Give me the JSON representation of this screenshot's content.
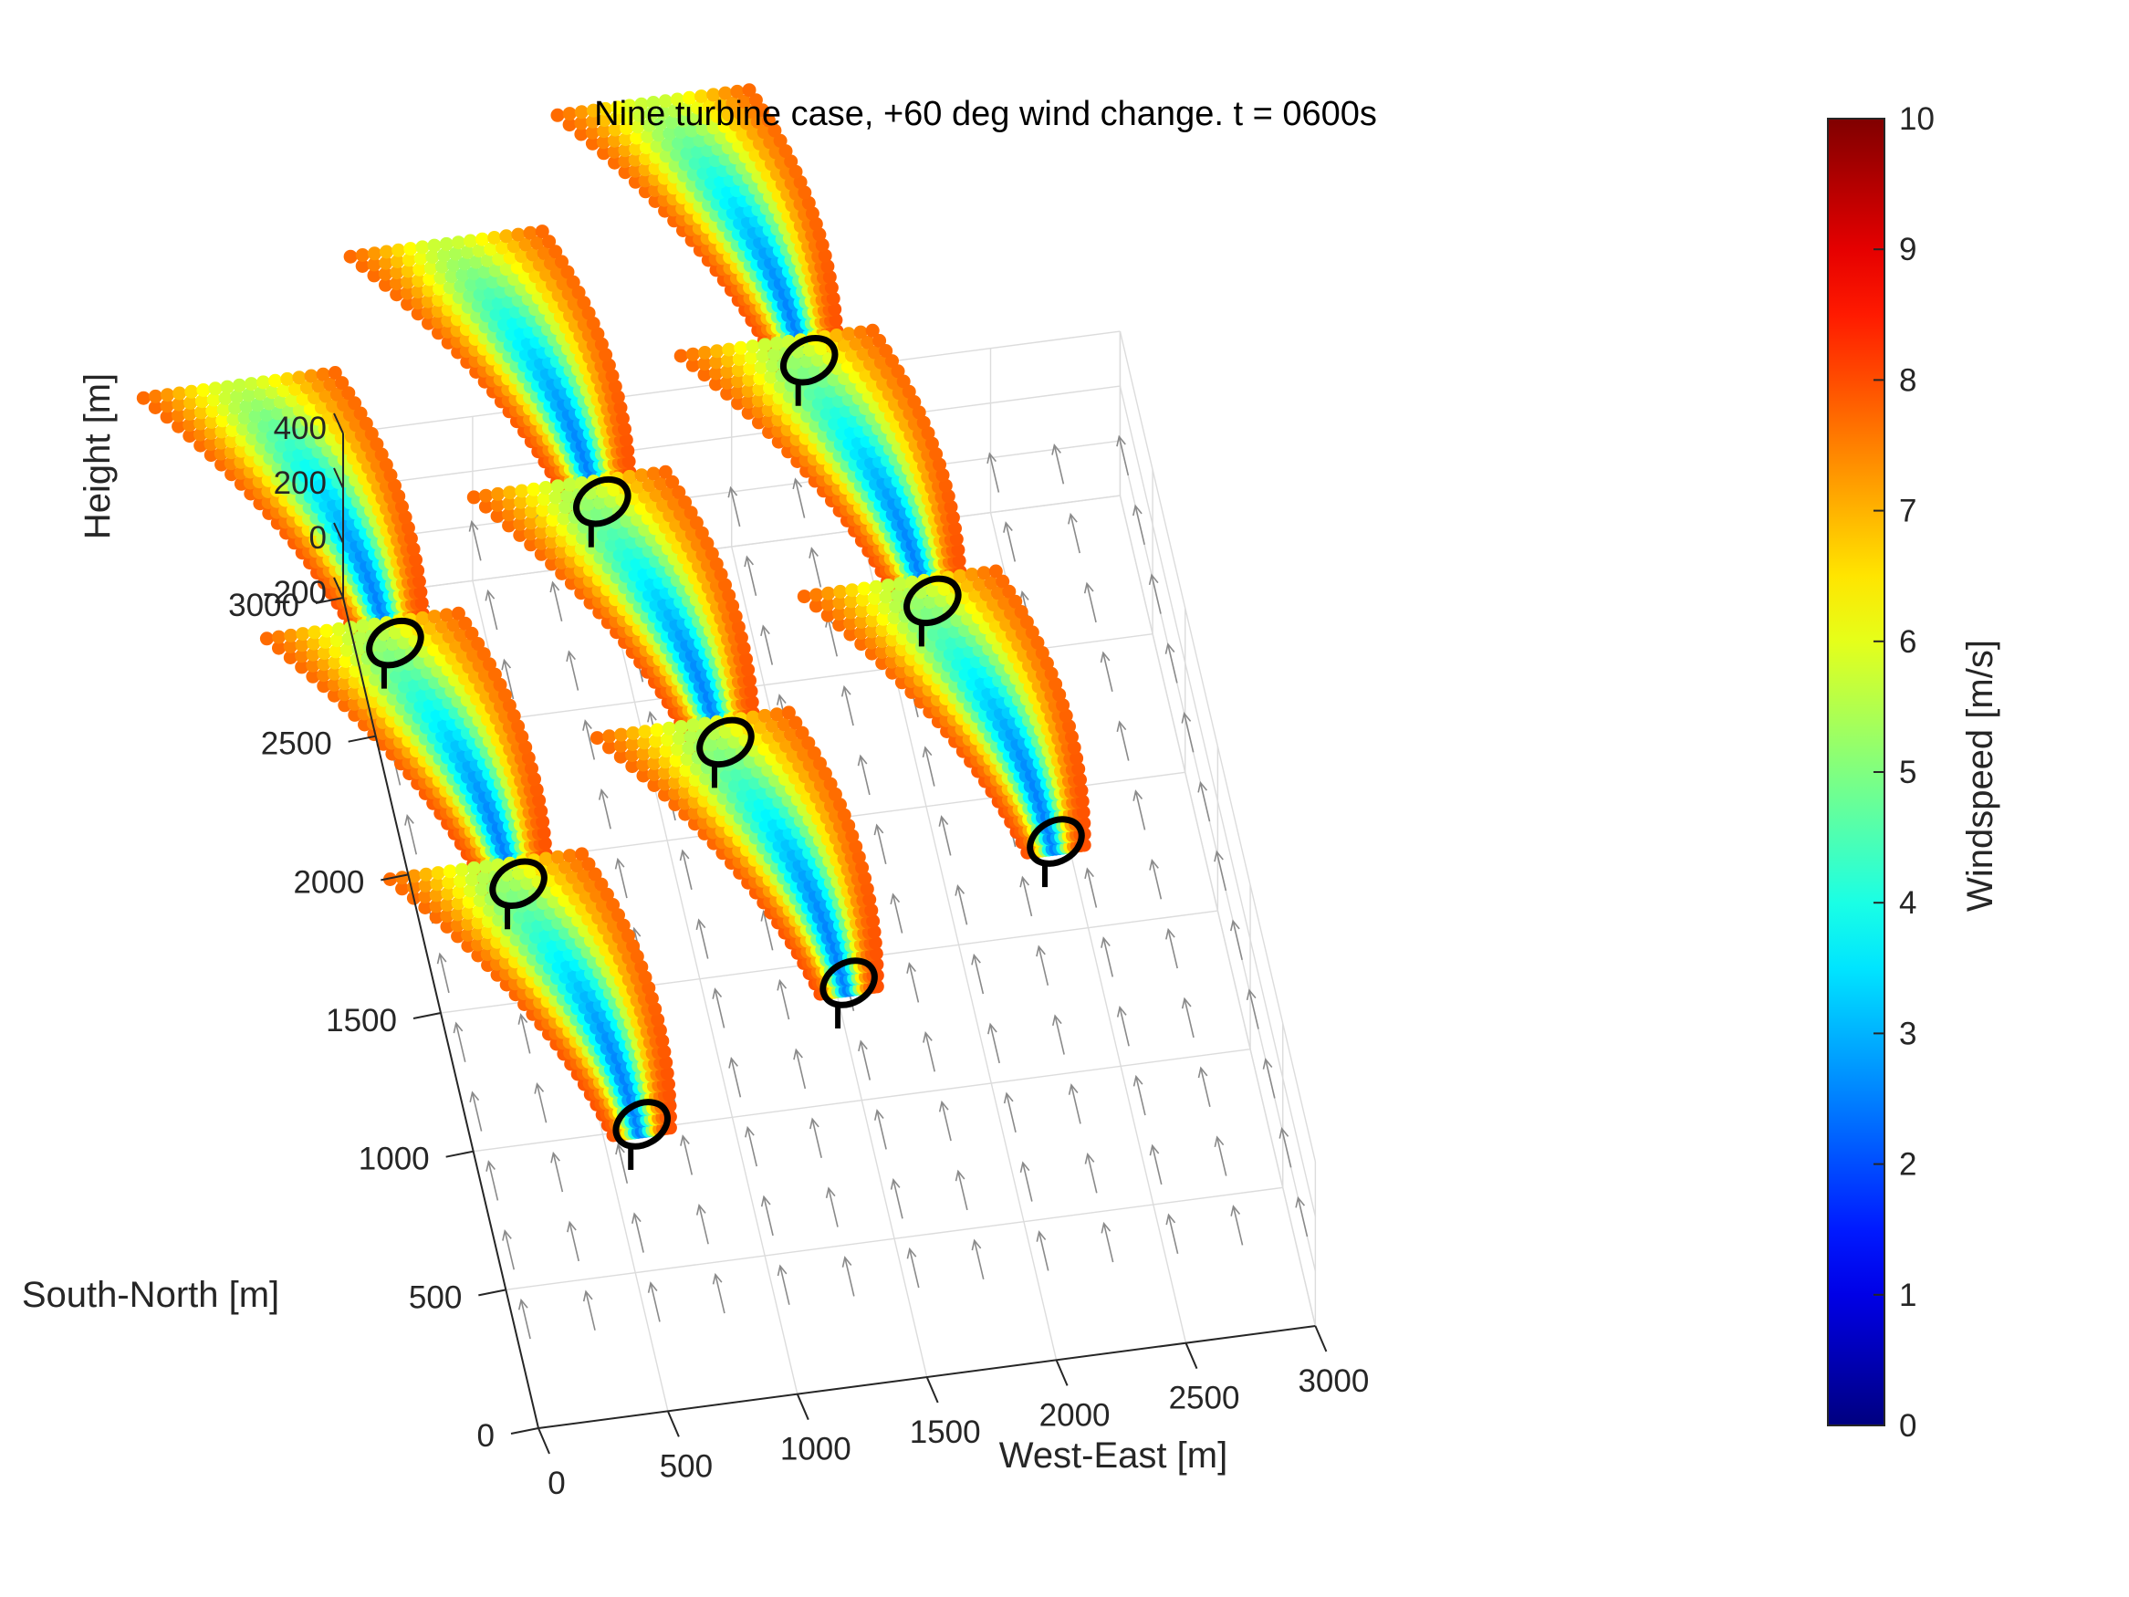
{
  "chart_data": {
    "type": "scatter",
    "title": "Nine turbine case, +60 deg wind change. t = 0600s",
    "xlabel": "West-East [m]",
    "ylabel": "South-North [m]",
    "zlabel": "Height [m]",
    "colorbar_label": "Windspeed [m/s]",
    "xlim": [
      0,
      3000
    ],
    "ylim": [
      0,
      3000
    ],
    "zlim": [
      -200,
      400
    ],
    "clim": [
      0,
      10
    ],
    "x_ticks": [
      "0",
      "500",
      "1000",
      "1500",
      "2000",
      "2500",
      "3000"
    ],
    "y_ticks": [
      "0",
      "500",
      "1000",
      "1500",
      "2000",
      "2500",
      "3000"
    ],
    "z_ticks": [
      "-200",
      "0",
      "200",
      "400"
    ],
    "colorbar_ticks": [
      "0",
      "1",
      "2",
      "3",
      "4",
      "5",
      "6",
      "7",
      "8",
      "9",
      "10"
    ],
    "colormap": "jet",
    "grid": true,
    "ambient_wind_direction": "south-to-north",
    "ambient_windspeed": 8,
    "turbines": [
      {
        "x": 600,
        "y": 800
      },
      {
        "x": 1500,
        "y": 1200
      },
      {
        "x": 2400,
        "y": 1600
      },
      {
        "x": 350,
        "y": 1700
      },
      {
        "x": 1250,
        "y": 2100
      },
      {
        "x": 2150,
        "y": 2500
      },
      {
        "x": 100,
        "y": 2600
      },
      {
        "x": 1000,
        "y": 3000
      },
      {
        "x": 1900,
        "y": 3400
      }
    ],
    "wake_length": 1000,
    "wake_core_windspeed": 2.5,
    "vector_grid_spacing": 250
  }
}
